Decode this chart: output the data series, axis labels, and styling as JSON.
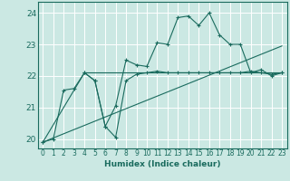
{
  "xlabel": "Humidex (Indice chaleur)",
  "bg_color": "#cbe8e3",
  "grid_color": "#ffffff",
  "line_color": "#1a6b5e",
  "xlim": [
    -0.5,
    23.5
  ],
  "ylim": [
    19.7,
    24.35
  ],
  "xticks": [
    0,
    1,
    2,
    3,
    4,
    5,
    6,
    7,
    8,
    9,
    10,
    11,
    12,
    13,
    14,
    15,
    16,
    17,
    18,
    19,
    20,
    21,
    22,
    23
  ],
  "yticks": [
    20,
    21,
    22,
    23,
    24
  ],
  "line1_x": [
    0,
    1,
    2,
    3,
    4,
    5,
    6,
    7,
    8,
    9,
    10,
    11,
    12,
    13,
    14,
    15,
    16,
    17,
    18,
    19,
    20,
    21,
    22,
    23
  ],
  "line1_y": [
    19.9,
    20.0,
    21.55,
    21.6,
    22.1,
    21.85,
    20.4,
    21.05,
    22.5,
    22.35,
    22.3,
    23.05,
    23.0,
    23.85,
    23.9,
    23.6,
    24.0,
    23.3,
    23.0,
    23.0,
    22.1,
    22.2,
    22.0,
    22.1
  ],
  "line2_x": [
    0,
    4,
    5,
    6,
    7,
    8,
    9,
    10,
    11,
    12,
    13,
    14,
    15,
    16,
    17,
    18,
    19,
    20,
    21,
    22,
    23
  ],
  "line2_y": [
    19.9,
    22.1,
    21.85,
    20.4,
    20.05,
    21.85,
    22.05,
    22.1,
    22.15,
    22.1,
    22.1,
    22.1,
    22.1,
    22.1,
    22.1,
    22.1,
    22.1,
    22.15,
    22.1,
    22.05,
    22.1
  ],
  "line3_x": [
    0,
    23
  ],
  "line3_y": [
    19.9,
    22.95
  ],
  "line4_x": [
    4,
    23
  ],
  "line4_y": [
    22.1,
    22.1
  ]
}
